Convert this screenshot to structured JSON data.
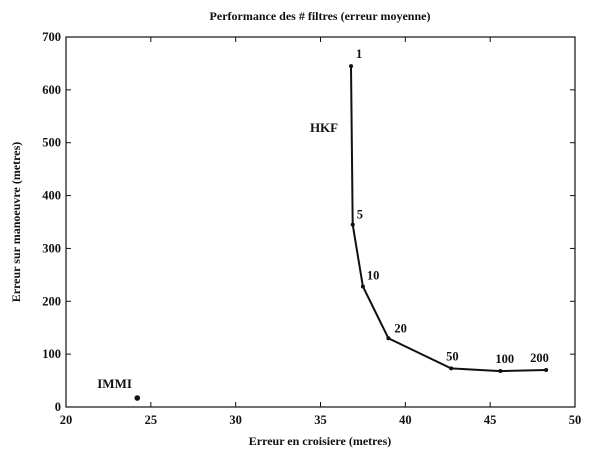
{
  "chart_data": {
    "type": "line",
    "title": "Performance des # filtres (erreur moyenne)",
    "xlabel": "Erreur en croisiere (metres)",
    "ylabel": "Erreur sur manoeuvre (metres)",
    "xlim": [
      20,
      50
    ],
    "ylim": [
      0,
      700
    ],
    "xticks": [
      20,
      25,
      30,
      35,
      40,
      45,
      50
    ],
    "yticks": [
      0,
      100,
      200,
      300,
      400,
      500,
      600,
      700
    ],
    "grid": false,
    "series": [
      {
        "name": "HKF",
        "color": "#111111",
        "points": [
          {
            "x": 36.8,
            "y": 645,
            "label": "1"
          },
          {
            "x": 36.9,
            "y": 345,
            "label": "5"
          },
          {
            "x": 37.5,
            "y": 228,
            "label": "10"
          },
          {
            "x": 39.0,
            "y": 130,
            "label": "20"
          },
          {
            "x": 42.7,
            "y": 73,
            "label": "50"
          },
          {
            "x": 45.6,
            "y": 68,
            "label": "100"
          },
          {
            "x": 48.3,
            "y": 70,
            "label": "200"
          }
        ]
      },
      {
        "name": "IMMI",
        "color": "#111111",
        "points": [
          {
            "x": 24.2,
            "y": 17
          }
        ]
      }
    ]
  }
}
